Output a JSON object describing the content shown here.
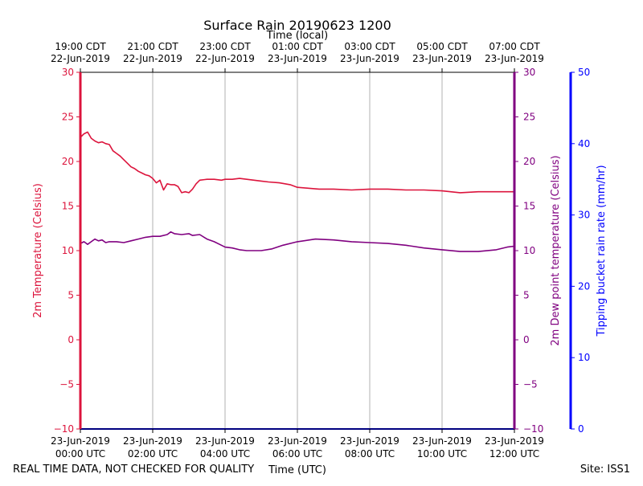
{
  "chart_data": {
    "type": "line",
    "title": "Surface Rain 20190623 1200",
    "top_axis_label": "Time (local)",
    "xlabel": "Time (UTC)",
    "footer_left": "REAL TIME DATA, NOT CHECKED FOR QUALITY",
    "footer_right": "Site: ISS1",
    "x_range_hours": [
      0,
      12
    ],
    "y_left": {
      "label": "2m Temperature (Celsius)",
      "range": [
        -10,
        30
      ],
      "ticks": [
        -10,
        -5,
        0,
        5,
        10,
        15,
        20,
        25,
        30
      ]
    },
    "y_right": {
      "label": "2m Dew point temperature (Celsius)",
      "range": [
        -10,
        30
      ],
      "ticks": [
        -10,
        -5,
        0,
        5,
        10,
        15,
        20,
        25,
        30
      ]
    },
    "y_rain": {
      "label": "Tipping bucket rain rate (mm/hr)",
      "range": [
        0,
        50
      ],
      "ticks": [
        0,
        10,
        20,
        30,
        40,
        50
      ]
    },
    "bottom_ticks": [
      {
        "hour": 0,
        "line1": "23-Jun-2019",
        "line2": "00:00 UTC"
      },
      {
        "hour": 2,
        "line1": "23-Jun-2019",
        "line2": "02:00 UTC"
      },
      {
        "hour": 4,
        "line1": "23-Jun-2019",
        "line2": "04:00 UTC"
      },
      {
        "hour": 6,
        "line1": "23-Jun-2019",
        "line2": "06:00 UTC"
      },
      {
        "hour": 8,
        "line1": "23-Jun-2019",
        "line2": "08:00 UTC"
      },
      {
        "hour": 10,
        "line1": "23-Jun-2019",
        "line2": "10:00 UTC"
      },
      {
        "hour": 12,
        "line1": "23-Jun-2019",
        "line2": "12:00 UTC"
      }
    ],
    "top_ticks": [
      {
        "hour": 0,
        "line1": "19:00 CDT",
        "line2": "22-Jun-2019"
      },
      {
        "hour": 2,
        "line1": "21:00 CDT",
        "line2": "22-Jun-2019"
      },
      {
        "hour": 4,
        "line1": "23:00 CDT",
        "line2": "22-Jun-2019"
      },
      {
        "hour": 6,
        "line1": "01:00 CDT",
        "line2": "23-Jun-2019"
      },
      {
        "hour": 8,
        "line1": "03:00 CDT",
        "line2": "23-Jun-2019"
      },
      {
        "hour": 10,
        "line1": "05:00 CDT",
        "line2": "23-Jun-2019"
      },
      {
        "hour": 12,
        "line1": "07:00 CDT",
        "line2": "23-Jun-2019"
      }
    ],
    "series": [
      {
        "name": "2m Temperature",
        "color": "#dc143c",
        "x": [
          0,
          0.1,
          0.2,
          0.3,
          0.4,
          0.5,
          0.6,
          0.7,
          0.8,
          0.9,
          1.0,
          1.1,
          1.2,
          1.3,
          1.4,
          1.5,
          1.6,
          1.7,
          1.8,
          1.9,
          2.0,
          2.1,
          2.2,
          2.3,
          2.4,
          2.5,
          2.6,
          2.7,
          2.8,
          2.9,
          3.0,
          3.1,
          3.2,
          3.3,
          3.5,
          3.7,
          3.9,
          4.0,
          4.2,
          4.4,
          4.6,
          4.8,
          5.0,
          5.2,
          5.5,
          5.8,
          6.0,
          6.3,
          6.6,
          7.0,
          7.5,
          8.0,
          8.5,
          9.0,
          9.5,
          10.0,
          10.5,
          11.0,
          11.5,
          12.0
        ],
        "values": [
          22.7,
          23.1,
          23.3,
          22.6,
          22.3,
          22.1,
          22.2,
          22.0,
          21.9,
          21.2,
          20.9,
          20.6,
          20.2,
          19.8,
          19.4,
          19.2,
          18.9,
          18.7,
          18.5,
          18.4,
          18.1,
          17.6,
          17.9,
          16.8,
          17.5,
          17.4,
          17.4,
          17.2,
          16.5,
          16.6,
          16.5,
          16.9,
          17.5,
          17.9,
          18.0,
          18.0,
          17.9,
          18.0,
          18.0,
          18.1,
          18.0,
          17.9,
          17.8,
          17.7,
          17.6,
          17.4,
          17.1,
          17.0,
          16.9,
          16.9,
          16.8,
          16.9,
          16.9,
          16.8,
          16.8,
          16.7,
          16.5,
          16.6,
          16.6,
          16.6
        ]
      },
      {
        "name": "2m Dew point temperature",
        "color": "#800080",
        "x": [
          0,
          0.1,
          0.2,
          0.3,
          0.4,
          0.5,
          0.6,
          0.7,
          0.8,
          1.0,
          1.2,
          1.4,
          1.6,
          1.8,
          2.0,
          2.2,
          2.4,
          2.5,
          2.6,
          2.8,
          3.0,
          3.1,
          3.3,
          3.5,
          3.7,
          3.9,
          4.0,
          4.2,
          4.4,
          4.6,
          4.8,
          5.0,
          5.3,
          5.6,
          6.0,
          6.5,
          7.0,
          7.5,
          8.0,
          8.5,
          9.0,
          9.5,
          10.0,
          10.5,
          11.0,
          11.5,
          11.8,
          12.0
        ],
        "values": [
          10.8,
          11.0,
          10.7,
          11.0,
          11.3,
          11.1,
          11.2,
          10.9,
          11.0,
          11.0,
          10.9,
          11.1,
          11.3,
          11.5,
          11.6,
          11.6,
          11.8,
          12.1,
          11.9,
          11.8,
          11.9,
          11.7,
          11.8,
          11.3,
          11.0,
          10.6,
          10.4,
          10.3,
          10.1,
          10.0,
          10.0,
          10.0,
          10.2,
          10.6,
          11.0,
          11.3,
          11.2,
          11.0,
          10.9,
          10.8,
          10.6,
          10.3,
          10.1,
          9.9,
          9.9,
          10.1,
          10.4,
          10.5
        ]
      }
    ]
  }
}
